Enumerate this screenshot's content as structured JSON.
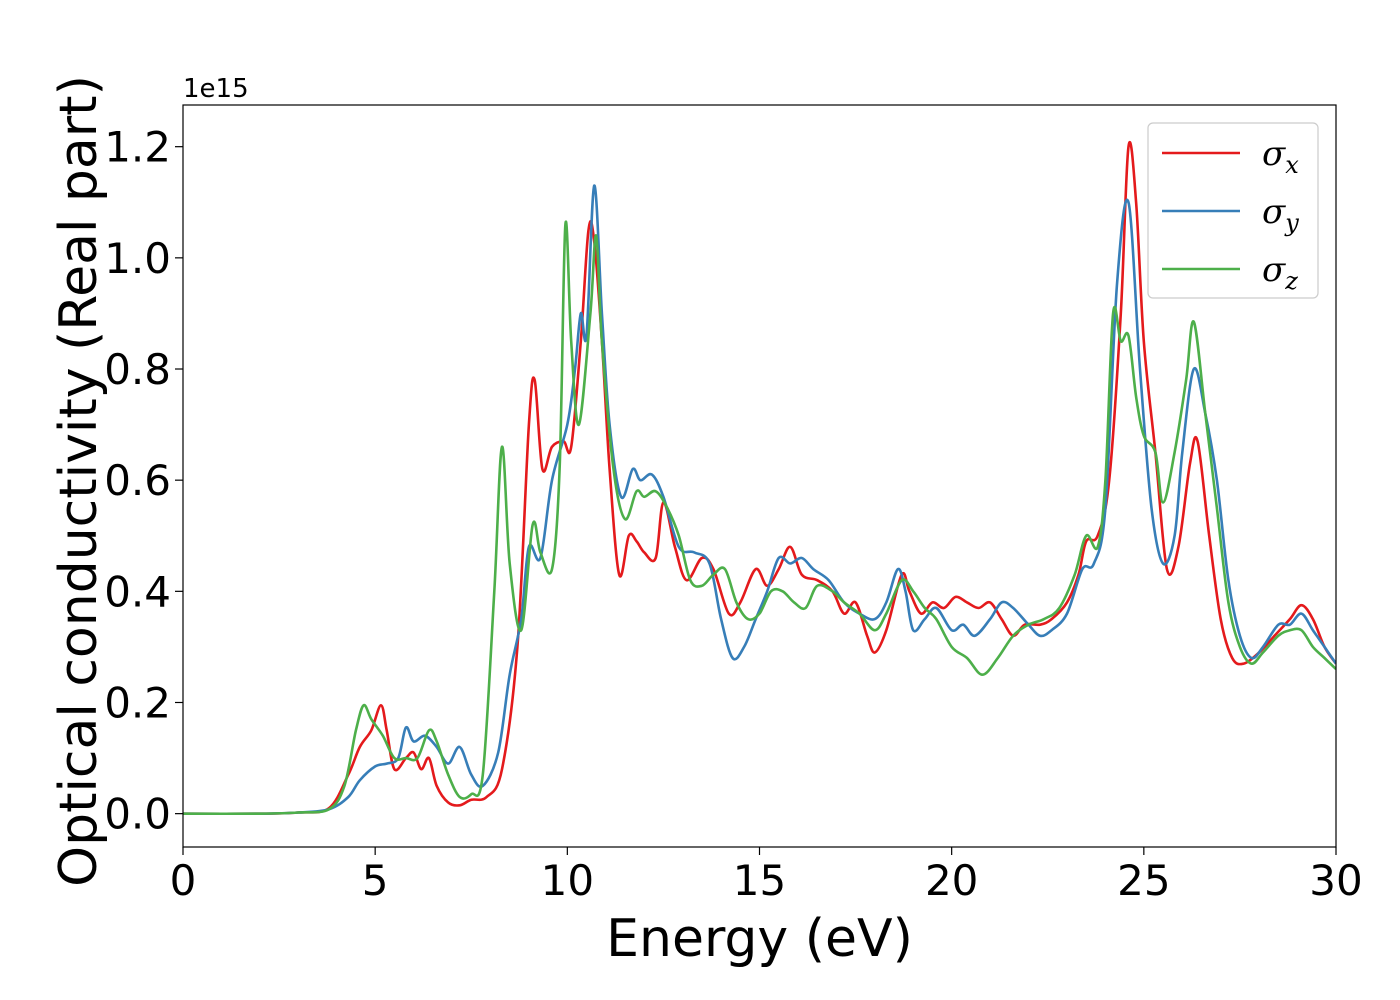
{
  "chart_data": {
    "type": "line",
    "xlabel": "Energy (eV)",
    "ylabel": "Optical conductivity (Real part)",
    "y_multiplier_label": "1e15",
    "xlim": [
      0,
      30
    ],
    "ylim": [
      -0.06,
      1.275
    ],
    "x_ticks": [
      0,
      5,
      10,
      15,
      20,
      25,
      30
    ],
    "y_ticks": [
      0.0,
      0.2,
      0.4,
      0.6,
      0.8,
      1.0,
      1.2
    ],
    "y_tick_labels": [
      "0.0",
      "0.2",
      "0.4",
      "0.6",
      "0.8",
      "1.0",
      "1.2"
    ],
    "legend_position": "top-right",
    "grid": false,
    "series": [
      {
        "name": "σx",
        "base": "σ",
        "sub": "x",
        "color": "#e41a1c",
        "points": [
          [
            0,
            0
          ],
          [
            2,
            0
          ],
          [
            3,
            0.002
          ],
          [
            3.8,
            0.01
          ],
          [
            4.3,
            0.07
          ],
          [
            4.6,
            0.12
          ],
          [
            4.9,
            0.15
          ],
          [
            5.15,
            0.195
          ],
          [
            5.3,
            0.15
          ],
          [
            5.5,
            0.08
          ],
          [
            5.8,
            0.1
          ],
          [
            6.0,
            0.11
          ],
          [
            6.2,
            0.08
          ],
          [
            6.4,
            0.1
          ],
          [
            6.6,
            0.05
          ],
          [
            6.9,
            0.02
          ],
          [
            7.2,
            0.015
          ],
          [
            7.5,
            0.025
          ],
          [
            7.9,
            0.03
          ],
          [
            8.3,
            0.08
          ],
          [
            8.7,
            0.3
          ],
          [
            9.0,
            0.7
          ],
          [
            9.15,
            0.78
          ],
          [
            9.35,
            0.62
          ],
          [
            9.6,
            0.66
          ],
          [
            9.9,
            0.67
          ],
          [
            10.1,
            0.66
          ],
          [
            10.35,
            0.85
          ],
          [
            10.55,
            1.05
          ],
          [
            10.7,
            1.03
          ],
          [
            10.9,
            0.85
          ],
          [
            11.1,
            0.62
          ],
          [
            11.35,
            0.43
          ],
          [
            11.6,
            0.5
          ],
          [
            11.8,
            0.49
          ],
          [
            12.0,
            0.47
          ],
          [
            12.3,
            0.46
          ],
          [
            12.5,
            0.56
          ],
          [
            12.8,
            0.48
          ],
          [
            13.1,
            0.42
          ],
          [
            13.5,
            0.46
          ],
          [
            13.8,
            0.44
          ],
          [
            14.2,
            0.36
          ],
          [
            14.5,
            0.38
          ],
          [
            14.9,
            0.44
          ],
          [
            15.2,
            0.41
          ],
          [
            15.5,
            0.44
          ],
          [
            15.8,
            0.48
          ],
          [
            16.1,
            0.43
          ],
          [
            16.5,
            0.42
          ],
          [
            16.9,
            0.4
          ],
          [
            17.2,
            0.36
          ],
          [
            17.5,
            0.38
          ],
          [
            17.8,
            0.32
          ],
          [
            18.0,
            0.29
          ],
          [
            18.3,
            0.33
          ],
          [
            18.7,
            0.43
          ],
          [
            18.9,
            0.4
          ],
          [
            19.2,
            0.36
          ],
          [
            19.5,
            0.38
          ],
          [
            19.8,
            0.37
          ],
          [
            20.1,
            0.39
          ],
          [
            20.4,
            0.38
          ],
          [
            20.7,
            0.37
          ],
          [
            21.0,
            0.38
          ],
          [
            21.3,
            0.35
          ],
          [
            21.6,
            0.32
          ],
          [
            21.9,
            0.34
          ],
          [
            22.3,
            0.34
          ],
          [
            22.6,
            0.35
          ],
          [
            23.0,
            0.38
          ],
          [
            23.3,
            0.43
          ],
          [
            23.5,
            0.49
          ],
          [
            23.8,
            0.5
          ],
          [
            24.1,
            0.6
          ],
          [
            24.4,
            0.9
          ],
          [
            24.6,
            1.2
          ],
          [
            24.8,
            1.1
          ],
          [
            25.0,
            0.85
          ],
          [
            25.3,
            0.65
          ],
          [
            25.6,
            0.44
          ],
          [
            25.9,
            0.48
          ],
          [
            26.2,
            0.63
          ],
          [
            26.4,
            0.67
          ],
          [
            26.7,
            0.5
          ],
          [
            27.0,
            0.35
          ],
          [
            27.3,
            0.28
          ],
          [
            27.6,
            0.27
          ],
          [
            28.0,
            0.29
          ],
          [
            28.4,
            0.32
          ],
          [
            28.8,
            0.35
          ],
          [
            29.1,
            0.375
          ],
          [
            29.4,
            0.35
          ],
          [
            29.7,
            0.3
          ],
          [
            30,
            0.27
          ]
        ]
      },
      {
        "name": "σy",
        "base": "σ",
        "sub": "y",
        "color": "#377eb8",
        "points": [
          [
            0,
            0
          ],
          [
            2,
            0
          ],
          [
            3,
            0.002
          ],
          [
            3.8,
            0.008
          ],
          [
            4.3,
            0.03
          ],
          [
            4.6,
            0.06
          ],
          [
            5.0,
            0.085
          ],
          [
            5.3,
            0.09
          ],
          [
            5.6,
            0.1
          ],
          [
            5.8,
            0.155
          ],
          [
            6.0,
            0.13
          ],
          [
            6.3,
            0.14
          ],
          [
            6.6,
            0.12
          ],
          [
            6.9,
            0.09
          ],
          [
            7.2,
            0.12
          ],
          [
            7.5,
            0.07
          ],
          [
            7.8,
            0.05
          ],
          [
            8.2,
            0.11
          ],
          [
            8.5,
            0.25
          ],
          [
            8.8,
            0.35
          ],
          [
            9.0,
            0.48
          ],
          [
            9.3,
            0.46
          ],
          [
            9.6,
            0.6
          ],
          [
            10.0,
            0.7
          ],
          [
            10.2,
            0.8
          ],
          [
            10.35,
            0.9
          ],
          [
            10.5,
            0.86
          ],
          [
            10.7,
            1.13
          ],
          [
            10.9,
            0.9
          ],
          [
            11.1,
            0.7
          ],
          [
            11.4,
            0.57
          ],
          [
            11.7,
            0.62
          ],
          [
            11.9,
            0.6
          ],
          [
            12.2,
            0.61
          ],
          [
            12.5,
            0.57
          ],
          [
            12.9,
            0.48
          ],
          [
            13.3,
            0.47
          ],
          [
            13.7,
            0.45
          ],
          [
            14.0,
            0.35
          ],
          [
            14.3,
            0.28
          ],
          [
            14.6,
            0.3
          ],
          [
            14.9,
            0.35
          ],
          [
            15.2,
            0.4
          ],
          [
            15.5,
            0.46
          ],
          [
            15.8,
            0.45
          ],
          [
            16.1,
            0.46
          ],
          [
            16.4,
            0.44
          ],
          [
            16.8,
            0.42
          ],
          [
            17.2,
            0.38
          ],
          [
            17.6,
            0.36
          ],
          [
            18.0,
            0.35
          ],
          [
            18.3,
            0.38
          ],
          [
            18.6,
            0.44
          ],
          [
            18.8,
            0.4
          ],
          [
            19.0,
            0.33
          ],
          [
            19.3,
            0.35
          ],
          [
            19.6,
            0.37
          ],
          [
            20.0,
            0.33
          ],
          [
            20.3,
            0.34
          ],
          [
            20.6,
            0.32
          ],
          [
            21.0,
            0.35
          ],
          [
            21.3,
            0.38
          ],
          [
            21.6,
            0.37
          ],
          [
            22.0,
            0.34
          ],
          [
            22.3,
            0.32
          ],
          [
            22.6,
            0.33
          ],
          [
            23.0,
            0.36
          ],
          [
            23.4,
            0.44
          ],
          [
            23.7,
            0.45
          ],
          [
            24.0,
            0.55
          ],
          [
            24.3,
            0.95
          ],
          [
            24.6,
            1.1
          ],
          [
            24.9,
            0.8
          ],
          [
            25.2,
            0.55
          ],
          [
            25.5,
            0.45
          ],
          [
            25.8,
            0.5
          ],
          [
            26.0,
            0.65
          ],
          [
            26.3,
            0.8
          ],
          [
            26.6,
            0.72
          ],
          [
            26.9,
            0.6
          ],
          [
            27.2,
            0.42
          ],
          [
            27.5,
            0.32
          ],
          [
            27.8,
            0.28
          ],
          [
            28.1,
            0.3
          ],
          [
            28.5,
            0.34
          ],
          [
            28.8,
            0.34
          ],
          [
            29.1,
            0.36
          ],
          [
            29.4,
            0.33
          ],
          [
            29.7,
            0.3
          ],
          [
            30,
            0.27
          ]
        ]
      },
      {
        "name": "σz",
        "base": "σ",
        "sub": "z",
        "color": "#4daf4a",
        "points": [
          [
            0,
            0
          ],
          [
            2,
            0
          ],
          [
            3,
            0.002
          ],
          [
            3.8,
            0.008
          ],
          [
            4.2,
            0.05
          ],
          [
            4.5,
            0.15
          ],
          [
            4.7,
            0.195
          ],
          [
            4.9,
            0.17
          ],
          [
            5.2,
            0.14
          ],
          [
            5.5,
            0.1
          ],
          [
            5.8,
            0.1
          ],
          [
            6.1,
            0.1
          ],
          [
            6.4,
            0.15
          ],
          [
            6.6,
            0.13
          ],
          [
            6.9,
            0.07
          ],
          [
            7.2,
            0.03
          ],
          [
            7.5,
            0.035
          ],
          [
            7.8,
            0.07
          ],
          [
            8.1,
            0.4
          ],
          [
            8.3,
            0.66
          ],
          [
            8.5,
            0.45
          ],
          [
            8.8,
            0.33
          ],
          [
            9.1,
            0.52
          ],
          [
            9.3,
            0.47
          ],
          [
            9.6,
            0.44
          ],
          [
            9.8,
            0.62
          ],
          [
            9.95,
            1.06
          ],
          [
            10.1,
            0.85
          ],
          [
            10.3,
            0.7
          ],
          [
            10.6,
            0.9
          ],
          [
            10.75,
            1.04
          ],
          [
            10.9,
            0.85
          ],
          [
            11.2,
            0.62
          ],
          [
            11.5,
            0.53
          ],
          [
            11.8,
            0.58
          ],
          [
            12.0,
            0.57
          ],
          [
            12.3,
            0.58
          ],
          [
            12.6,
            0.55
          ],
          [
            12.9,
            0.5
          ],
          [
            13.2,
            0.42
          ],
          [
            13.5,
            0.41
          ],
          [
            13.8,
            0.43
          ],
          [
            14.1,
            0.44
          ],
          [
            14.4,
            0.38
          ],
          [
            14.7,
            0.35
          ],
          [
            15.0,
            0.36
          ],
          [
            15.3,
            0.4
          ],
          [
            15.6,
            0.4
          ],
          [
            15.9,
            0.38
          ],
          [
            16.2,
            0.37
          ],
          [
            16.5,
            0.41
          ],
          [
            16.9,
            0.4
          ],
          [
            17.2,
            0.38
          ],
          [
            17.6,
            0.36
          ],
          [
            18.0,
            0.33
          ],
          [
            18.3,
            0.36
          ],
          [
            18.7,
            0.42
          ],
          [
            19.0,
            0.4
          ],
          [
            19.3,
            0.37
          ],
          [
            19.6,
            0.35
          ],
          [
            20.0,
            0.3
          ],
          [
            20.4,
            0.28
          ],
          [
            20.8,
            0.25
          ],
          [
            21.2,
            0.28
          ],
          [
            21.6,
            0.32
          ],
          [
            22.0,
            0.34
          ],
          [
            22.4,
            0.35
          ],
          [
            22.8,
            0.37
          ],
          [
            23.2,
            0.43
          ],
          [
            23.5,
            0.5
          ],
          [
            23.8,
            0.48
          ],
          [
            24.0,
            0.6
          ],
          [
            24.2,
            0.9
          ],
          [
            24.4,
            0.85
          ],
          [
            24.6,
            0.86
          ],
          [
            24.8,
            0.75
          ],
          [
            25.0,
            0.68
          ],
          [
            25.3,
            0.65
          ],
          [
            25.5,
            0.56
          ],
          [
            25.8,
            0.65
          ],
          [
            26.1,
            0.78
          ],
          [
            26.3,
            0.885
          ],
          [
            26.6,
            0.72
          ],
          [
            26.9,
            0.55
          ],
          [
            27.2,
            0.38
          ],
          [
            27.5,
            0.3
          ],
          [
            27.8,
            0.27
          ],
          [
            28.1,
            0.29
          ],
          [
            28.5,
            0.32
          ],
          [
            28.8,
            0.33
          ],
          [
            29.1,
            0.33
          ],
          [
            29.4,
            0.3
          ],
          [
            29.7,
            0.28
          ],
          [
            30,
            0.26
          ]
        ]
      }
    ]
  }
}
